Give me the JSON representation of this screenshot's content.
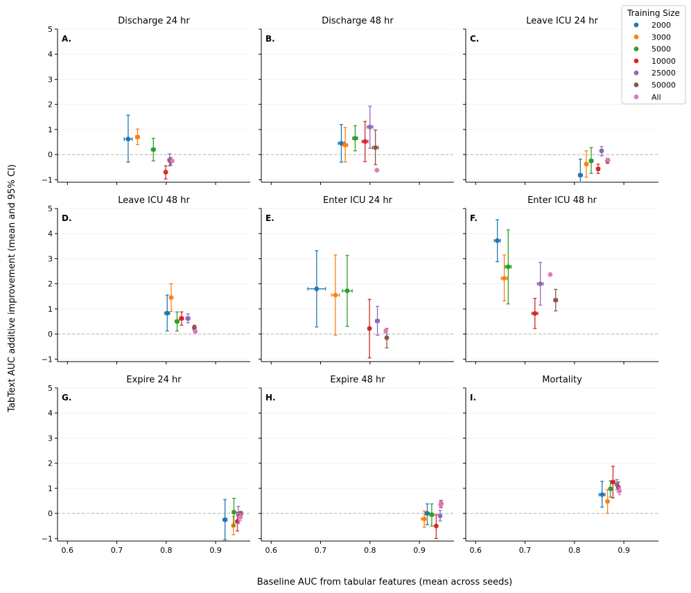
{
  "figure": {
    "ylabel": "TabText AUC additive improvement (mean and 95% CI)",
    "xlabel": "Baseline AUC from tabular features (mean across seeds)"
  },
  "legend": {
    "title": "Training Size",
    "entries": [
      {
        "label": "2000",
        "color": "#1f77b4"
      },
      {
        "label": "3000",
        "color": "#ff7f0e"
      },
      {
        "label": "5000",
        "color": "#2ca02c"
      },
      {
        "label": "10000",
        "color": "#d62728"
      },
      {
        "label": "25000",
        "color": "#9467bd"
      },
      {
        "label": "50000",
        "color": "#8c564b"
      },
      {
        "label": "All",
        "color": "#e377c2"
      }
    ]
  },
  "chart_data": [
    {
      "type": "scatter",
      "letter": "A.",
      "title": "Discharge 24 hr",
      "xlim": [
        0.58,
        0.97
      ],
      "ylim": [
        -1.1,
        5
      ],
      "xticks": [
        "0.6",
        "0.7",
        "0.8",
        "0.9"
      ],
      "yticks": [
        "−1",
        "0",
        "1",
        "2",
        "3",
        "4",
        "5"
      ],
      "points": [
        {
          "series": "2000",
          "x": 0.723,
          "y": 0.62,
          "ylo": -0.3,
          "yhi": 1.57,
          "xerr": 0.008
        },
        {
          "series": "3000",
          "x": 0.742,
          "y": 0.7,
          "ylo": 0.4,
          "yhi": 1.02,
          "xerr": 0.004
        },
        {
          "series": "5000",
          "x": 0.774,
          "y": 0.2,
          "ylo": -0.25,
          "yhi": 0.65,
          "xerr": 0.004
        },
        {
          "series": "10000",
          "x": 0.799,
          "y": -0.7,
          "ylo": -0.97,
          "yhi": -0.45,
          "xerr": 0.003
        },
        {
          "series": "25000",
          "x": 0.807,
          "y": -0.22,
          "ylo": -0.45,
          "yhi": 0.03,
          "xerr": 0.004
        },
        {
          "series": "50000",
          "x": 0.809,
          "y": -0.27,
          "ylo": -0.42,
          "yhi": -0.12,
          "xerr": 0.003
        },
        {
          "series": "All",
          "x": 0.812,
          "y": -0.25,
          "ylo": null,
          "yhi": null,
          "xerr": 0
        }
      ]
    },
    {
      "type": "scatter",
      "letter": "B.",
      "title": "Discharge 48 hr",
      "xlim": [
        0.58,
        0.97
      ],
      "ylim": [
        -1.1,
        5
      ],
      "xticks": [
        "0.6",
        "0.7",
        "0.8",
        "0.9"
      ],
      "yticks": [
        "−1",
        "0",
        "1",
        "2",
        "3",
        "4",
        "5"
      ],
      "points": [
        {
          "series": "2000",
          "x": 0.742,
          "y": 0.45,
          "ylo": -0.3,
          "yhi": 1.2,
          "xerr": 0.006
        },
        {
          "series": "3000",
          "x": 0.75,
          "y": 0.38,
          "ylo": -0.3,
          "yhi": 1.08,
          "xerr": 0.005
        },
        {
          "series": "5000",
          "x": 0.77,
          "y": 0.65,
          "ylo": 0.15,
          "yhi": 1.15,
          "xerr": 0.005
        },
        {
          "series": "10000",
          "x": 0.79,
          "y": 0.52,
          "ylo": -0.28,
          "yhi": 1.32,
          "xerr": 0.006
        },
        {
          "series": "25000",
          "x": 0.8,
          "y": 1.1,
          "ylo": 0.25,
          "yhi": 1.93,
          "xerr": 0.006
        },
        {
          "series": "50000",
          "x": 0.811,
          "y": 0.28,
          "ylo": -0.4,
          "yhi": 0.98,
          "xerr": 0.006
        },
        {
          "series": "All",
          "x": 0.814,
          "y": -0.62,
          "ylo": null,
          "yhi": null,
          "xerr": 0
        }
      ]
    },
    {
      "type": "scatter",
      "letter": "C.",
      "title": "Leave ICU 24 hr",
      "xlim": [
        0.58,
        0.97
      ],
      "ylim": [
        -1.1,
        5
      ],
      "xticks": [
        "0.6",
        "0.7",
        "0.8",
        "0.9"
      ],
      "yticks": [
        "−1",
        "0",
        "1",
        "2",
        "3",
        "4",
        "5"
      ],
      "points": [
        {
          "series": "2000",
          "x": 0.812,
          "y": -0.82,
          "ylo": -1.1,
          "yhi": -0.18,
          "xerr": 0.004
        },
        {
          "series": "3000",
          "x": 0.824,
          "y": -0.38,
          "ylo": -0.9,
          "yhi": 0.15,
          "xerr": 0.003
        },
        {
          "series": "5000",
          "x": 0.834,
          "y": -0.25,
          "ylo": -0.75,
          "yhi": 0.28,
          "xerr": 0.004
        },
        {
          "series": "10000",
          "x": 0.848,
          "y": -0.57,
          "ylo": -0.75,
          "yhi": -0.38,
          "xerr": 0.003
        },
        {
          "series": "25000",
          "x": 0.855,
          "y": 0.15,
          "ylo": -0.05,
          "yhi": 0.32,
          "xerr": 0.003
        },
        {
          "series": "50000",
          "x": 0.867,
          "y": -0.25,
          "ylo": -0.35,
          "yhi": -0.15,
          "xerr": 0.002
        },
        {
          "series": "All",
          "x": 0.868,
          "y": -0.22,
          "ylo": null,
          "yhi": null,
          "xerr": 0
        }
      ]
    },
    {
      "type": "scatter",
      "letter": "D.",
      "title": "Leave ICU 48 hr",
      "xlim": [
        0.58,
        0.97
      ],
      "ylim": [
        -1.1,
        5
      ],
      "xticks": [
        "0.6",
        "0.7",
        "0.8",
        "0.9"
      ],
      "yticks": [
        "−1",
        "0",
        "1",
        "2",
        "3",
        "4",
        "5"
      ],
      "points": [
        {
          "series": "2000",
          "x": 0.802,
          "y": 0.83,
          "ylo": 0.12,
          "yhi": 1.55,
          "xerr": 0.005
        },
        {
          "series": "3000",
          "x": 0.81,
          "y": 1.45,
          "ylo": 0.9,
          "yhi": 2.0,
          "xerr": 0.003
        },
        {
          "series": "5000",
          "x": 0.822,
          "y": 0.5,
          "ylo": 0.12,
          "yhi": 0.88,
          "xerr": 0.004
        },
        {
          "series": "10000",
          "x": 0.831,
          "y": 0.62,
          "ylo": 0.35,
          "yhi": 0.88,
          "xerr": 0.004
        },
        {
          "series": "25000",
          "x": 0.844,
          "y": 0.62,
          "ylo": 0.45,
          "yhi": 0.8,
          "xerr": 0.004
        },
        {
          "series": "50000",
          "x": 0.857,
          "y": 0.25,
          "ylo": 0.15,
          "yhi": 0.35,
          "xerr": 0.003
        },
        {
          "series": "All",
          "x": 0.859,
          "y": 0.1,
          "ylo": null,
          "yhi": null,
          "xerr": 0
        }
      ]
    },
    {
      "type": "scatter",
      "letter": "E.",
      "title": "Enter ICU 24 hr",
      "xlim": [
        0.58,
        0.97
      ],
      "ylim": [
        -1.1,
        5
      ],
      "xticks": [
        "0.6",
        "0.7",
        "0.8",
        "0.9"
      ],
      "yticks": [
        "−1",
        "0",
        "1",
        "2",
        "3",
        "4",
        "5"
      ],
      "points": [
        {
          "series": "2000",
          "x": 0.692,
          "y": 1.8,
          "ylo": 0.28,
          "yhi": 3.32,
          "xerr": 0.018
        },
        {
          "series": "3000",
          "x": 0.73,
          "y": 1.55,
          "ylo": -0.05,
          "yhi": 3.15,
          "xerr": 0.008
        },
        {
          "series": "5000",
          "x": 0.754,
          "y": 1.72,
          "ylo": 0.3,
          "yhi": 3.13,
          "xerr": 0.01
        },
        {
          "series": "10000",
          "x": 0.799,
          "y": 0.22,
          "ylo": -0.95,
          "yhi": 1.38,
          "xerr": 0.003
        },
        {
          "series": "25000",
          "x": 0.815,
          "y": 0.52,
          "ylo": -0.05,
          "yhi": 1.1,
          "xerr": 0.004
        },
        {
          "series": "50000",
          "x": 0.834,
          "y": -0.15,
          "ylo": -0.55,
          "yhi": 0.22,
          "xerr": 0.002
        },
        {
          "series": "All",
          "x": 0.832,
          "y": 0.12,
          "ylo": null,
          "yhi": null,
          "xerr": 0
        }
      ]
    },
    {
      "type": "scatter",
      "letter": "F.",
      "title": "Enter ICU 48 hr",
      "xlim": [
        0.58,
        0.97
      ],
      "ylim": [
        -1.1,
        5
      ],
      "xticks": [
        "0.6",
        "0.7",
        "0.8",
        "0.9"
      ],
      "yticks": [
        "−1",
        "0",
        "1",
        "2",
        "3",
        "4",
        "5"
      ],
      "points": [
        {
          "series": "2000",
          "x": 0.644,
          "y": 3.72,
          "ylo": 2.88,
          "yhi": 4.55,
          "xerr": 0.006
        },
        {
          "series": "3000",
          "x": 0.658,
          "y": 2.22,
          "ylo": 1.32,
          "yhi": 3.15,
          "xerr": 0.006
        },
        {
          "series": "5000",
          "x": 0.666,
          "y": 2.68,
          "ylo": 1.2,
          "yhi": 4.15,
          "xerr": 0.006
        },
        {
          "series": "10000",
          "x": 0.72,
          "y": 0.82,
          "ylo": 0.22,
          "yhi": 1.42,
          "xerr": 0.006
        },
        {
          "series": "25000",
          "x": 0.731,
          "y": 2.0,
          "ylo": 1.15,
          "yhi": 2.85,
          "xerr": 0.006
        },
        {
          "series": "50000",
          "x": 0.762,
          "y": 1.35,
          "ylo": 0.92,
          "yhi": 1.78,
          "xerr": 0.004
        },
        {
          "series": "All",
          "x": 0.751,
          "y": 2.37,
          "ylo": null,
          "yhi": null,
          "xerr": 0
        }
      ]
    },
    {
      "type": "scatter",
      "letter": "G.",
      "title": "Expire 24 hr",
      "xlim": [
        0.58,
        0.97
      ],
      "ylim": [
        -1.1,
        5
      ],
      "xticks": [
        "0.6",
        "0.7",
        "0.8",
        "0.9"
      ],
      "yticks": [
        "−1",
        "0",
        "1",
        "2",
        "3",
        "4",
        "5"
      ],
      "points": [
        {
          "series": "2000",
          "x": 0.919,
          "y": -0.25,
          "ylo": -1.05,
          "yhi": 0.55,
          "xerr": 0.004
        },
        {
          "series": "3000",
          "x": 0.936,
          "y": -0.48,
          "ylo": -0.85,
          "yhi": -0.12,
          "xerr": 0.003
        },
        {
          "series": "5000",
          "x": 0.937,
          "y": 0.05,
          "ylo": -0.5,
          "yhi": 0.6,
          "xerr": 0.003
        },
        {
          "series": "10000",
          "x": 0.944,
          "y": -0.32,
          "ylo": -0.7,
          "yhi": 0.05,
          "xerr": 0.002
        },
        {
          "series": "25000",
          "x": 0.946,
          "y": -0.05,
          "ylo": -0.4,
          "yhi": 0.28,
          "xerr": 0.002
        },
        {
          "series": "50000",
          "x": 0.951,
          "y": 0.0,
          "ylo": -0.1,
          "yhi": 0.08,
          "xerr": 0.002
        },
        {
          "series": "All",
          "x": 0.95,
          "y": -0.15,
          "ylo": -0.3,
          "yhi": 0.0,
          "xerr": 0.002
        }
      ]
    },
    {
      "type": "scatter",
      "letter": "H.",
      "title": "Expire 48 hr",
      "xlim": [
        0.58,
        0.97
      ],
      "ylim": [
        -1.1,
        5
      ],
      "xticks": [
        "0.6",
        "0.7",
        "0.8",
        "0.9"
      ],
      "yticks": [
        "−1",
        "0",
        "1",
        "2",
        "3",
        "4",
        "5"
      ],
      "points": [
        {
          "series": "2000",
          "x": 0.916,
          "y": 0.0,
          "ylo": -0.45,
          "yhi": 0.38,
          "xerr": 0.004
        },
        {
          "series": "3000",
          "x": 0.91,
          "y": -0.22,
          "ylo": -0.55,
          "yhi": 0.1,
          "xerr": 0.006
        },
        {
          "series": "5000",
          "x": 0.925,
          "y": -0.05,
          "ylo": -0.5,
          "yhi": 0.38,
          "xerr": 0.004
        },
        {
          "series": "10000",
          "x": 0.934,
          "y": -0.5,
          "ylo": -1.0,
          "yhi": -0.05,
          "xerr": 0.002
        },
        {
          "series": "25000",
          "x": 0.942,
          "y": -0.1,
          "ylo": -0.3,
          "yhi": 0.12,
          "xerr": 0.002
        },
        {
          "series": "50000",
          "x": 0.944,
          "y": 0.38,
          "ylo": 0.25,
          "yhi": 0.52,
          "xerr": 0.002
        },
        {
          "series": "All",
          "x": 0.943,
          "y": 0.35,
          "ylo": 0.22,
          "yhi": 0.48,
          "xerr": 0.002
        }
      ]
    },
    {
      "type": "scatter",
      "letter": "I.",
      "title": "Mortality",
      "xlim": [
        0.58,
        0.97
      ],
      "ylim": [
        -1.1,
        5
      ],
      "xticks": [
        "0.6",
        "0.7",
        "0.8",
        "0.9"
      ],
      "yticks": [
        "−1",
        "0",
        "1",
        "2",
        "3",
        "4",
        "5"
      ],
      "points": [
        {
          "series": "2000",
          "x": 0.856,
          "y": 0.75,
          "ylo": 0.25,
          "yhi": 1.28,
          "xerr": 0.006
        },
        {
          "series": "3000",
          "x": 0.867,
          "y": 0.48,
          "ylo": 0.0,
          "yhi": 0.95,
          "xerr": 0.003
        },
        {
          "series": "5000",
          "x": 0.873,
          "y": 0.98,
          "ylo": 0.65,
          "yhi": 1.3,
          "xerr": 0.003
        },
        {
          "series": "10000",
          "x": 0.878,
          "y": 1.25,
          "ylo": 0.62,
          "yhi": 1.88,
          "xerr": 0.004
        },
        {
          "series": "25000",
          "x": 0.886,
          "y": 1.15,
          "ylo": 0.95,
          "yhi": 1.35,
          "xerr": 0.003
        },
        {
          "series": "50000",
          "x": 0.889,
          "y": 1.05,
          "ylo": 0.85,
          "yhi": 1.25,
          "xerr": 0.003
        },
        {
          "series": "All",
          "x": 0.891,
          "y": 0.9,
          "ylo": 0.75,
          "yhi": 1.05,
          "xerr": 0.003
        }
      ]
    }
  ]
}
